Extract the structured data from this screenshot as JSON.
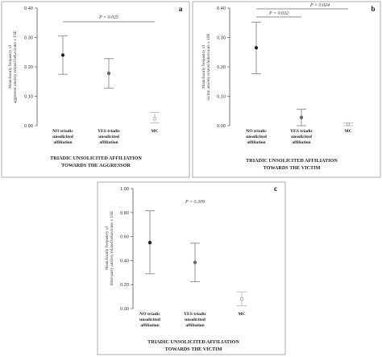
{
  "chart_data": [
    {
      "type": "scatter",
      "panel": "a",
      "ylabel": [
        "Mean hourly frequency of",
        "aggressor anxiety related behaviours ± 1SE"
      ],
      "xlabel": [
        "TRIADIC UNSOLICITED AFFILIATION",
        "TOWARDS THE AGGRESSOR"
      ],
      "ylim": [
        0,
        0.4
      ],
      "yticks": [
        "0.00",
        "0.10",
        "0.20",
        "0.30",
        "0.40"
      ],
      "categories": [
        [
          "NO triadic",
          "unsolicited",
          "affiliation"
        ],
        [
          "YES triadic",
          "unsolicited",
          "affiliation"
        ],
        [
          "MC"
        ]
      ],
      "series": [
        {
          "means": [
            0.24,
            0.178,
            0.025
          ],
          "lower": [
            0.175,
            0.128,
            0.01
          ],
          "upper": [
            0.305,
            0.228,
            0.045
          ]
        }
      ],
      "annotations": [
        {
          "text": "P = 0.025",
          "from": 0,
          "to": 2
        }
      ],
      "grid": false,
      "legend": "none"
    },
    {
      "type": "scatter",
      "panel": "b",
      "ylabel": [
        "Mean hourly frequency of",
        "victim anxiety related behaviours ± 1SE"
      ],
      "xlabel": [
        "TRIADIC UNSOLICITED AFFILIATION",
        "TOWARDS THE VICTIM"
      ],
      "ylim": [
        0,
        0.4
      ],
      "yticks": [
        "0.00",
        "0.10",
        "0.20",
        "0.30",
        "0.40"
      ],
      "categories": [
        [
          "NO triadic",
          "unsolicited",
          "affiliation"
        ],
        [
          "YES triadic",
          "unsolicited",
          "affiliation"
        ],
        [
          "MC"
        ]
      ],
      "series": [
        {
          "means": [
            0.265,
            0.028,
            0.005
          ],
          "lower": [
            0.177,
            0.0,
            0.0
          ],
          "upper": [
            0.352,
            0.056,
            0.01
          ]
        }
      ],
      "annotations": [
        {
          "text": "P = 0.032",
          "from": 0,
          "to": 1
        },
        {
          "text": "P = 0.024",
          "from": 0,
          "to": 2
        }
      ],
      "grid": false,
      "legend": "none"
    },
    {
      "type": "scatter",
      "panel": "c",
      "ylabel": [
        "Mean hourly frequency of",
        "third-party anxiety related behaviours ± 1SE"
      ],
      "xlabel": [
        "TRIADIC UNSOLICITED AFFILIATION",
        "TOWARDS THE VICTIM"
      ],
      "ylim": [
        0,
        1.0
      ],
      "yticks": [
        "0.00",
        "0.20",
        "0.40",
        "0.60",
        "0.80",
        "1.00"
      ],
      "categories": [
        [
          "NO triadic",
          "unsolicited",
          "affiliation"
        ],
        [
          "YES triadic",
          "unsolicited",
          "affiliation"
        ],
        [
          "MC"
        ]
      ],
      "series": [
        {
          "means": [
            0.55,
            0.385,
            0.08
          ],
          "lower": [
            0.29,
            0.225,
            0.025
          ],
          "upper": [
            0.815,
            0.545,
            0.14
          ]
        }
      ],
      "annotations": [
        {
          "text": "P = 0.309",
          "position": "top-center"
        }
      ],
      "grid": false,
      "legend": "none"
    }
  ]
}
